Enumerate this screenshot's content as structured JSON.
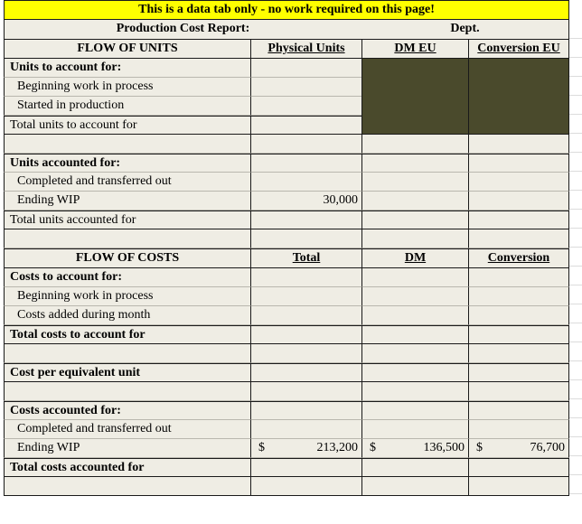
{
  "header": {
    "note": "This is a data tab only - no work required on this page!",
    "report_title": "Production Cost Report:",
    "dept_label": "Dept."
  },
  "units": {
    "section_title": "FLOW OF UNITS",
    "col_physical": "Physical Units",
    "col_dm": "DM EU",
    "col_conversion": "Conversion EU",
    "to_account_title": "Units to account for:",
    "beginning_wip": "Beginning work in process",
    "started": "Started in production",
    "total_to_account": "Total  units to account for",
    "accounted_title": "Units accounted for:",
    "completed": "Completed and transferred out",
    "ending_wip": "Ending WIP",
    "ending_wip_physical": "30,000",
    "total_accounted": "Total  units accounted for"
  },
  "costs": {
    "section_title": "FLOW OF COSTS",
    "col_total": "Total",
    "col_dm": "DM",
    "col_conversion": "Conversion",
    "to_account_title": "Costs to account for:",
    "beginning_wip": "Beginning work in process",
    "added": "Costs added during month",
    "total_to_account": "Total costs to account for",
    "cost_per_eu": "Cost per equivalent unit",
    "accounted_title": "Costs accounted for:",
    "completed": "Completed and transferred out",
    "ending_wip": "Ending WIP",
    "currency": "$",
    "ending_wip_total": "213,200",
    "ending_wip_dm": "136,500",
    "ending_wip_conversion": "76,700",
    "total_accounted": "Total costs accounted for"
  },
  "colors": {
    "yellow_header": "#ffff00",
    "cell_background": "#efede4",
    "shaded_block": "#4a4a2c"
  }
}
